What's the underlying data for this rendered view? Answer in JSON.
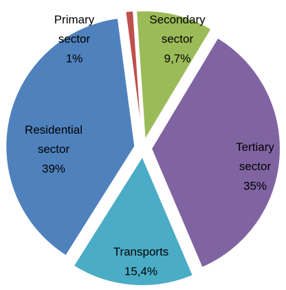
{
  "chart_data": {
    "type": "pie",
    "categories": [
      "Primary sector",
      "Secondary sector",
      "Tertiary sector",
      "Transports",
      "Residential sector"
    ],
    "values": [
      1,
      9.7,
      35,
      15.4,
      39
    ],
    "value_labels": [
      "1%",
      "9,7%",
      "35%",
      "15,4%",
      "39%"
    ],
    "colors": [
      "#c0504d",
      "#9bbb59",
      "#8064a2",
      "#4bacc6",
      "#4f81bd"
    ],
    "exploded": true
  }
}
